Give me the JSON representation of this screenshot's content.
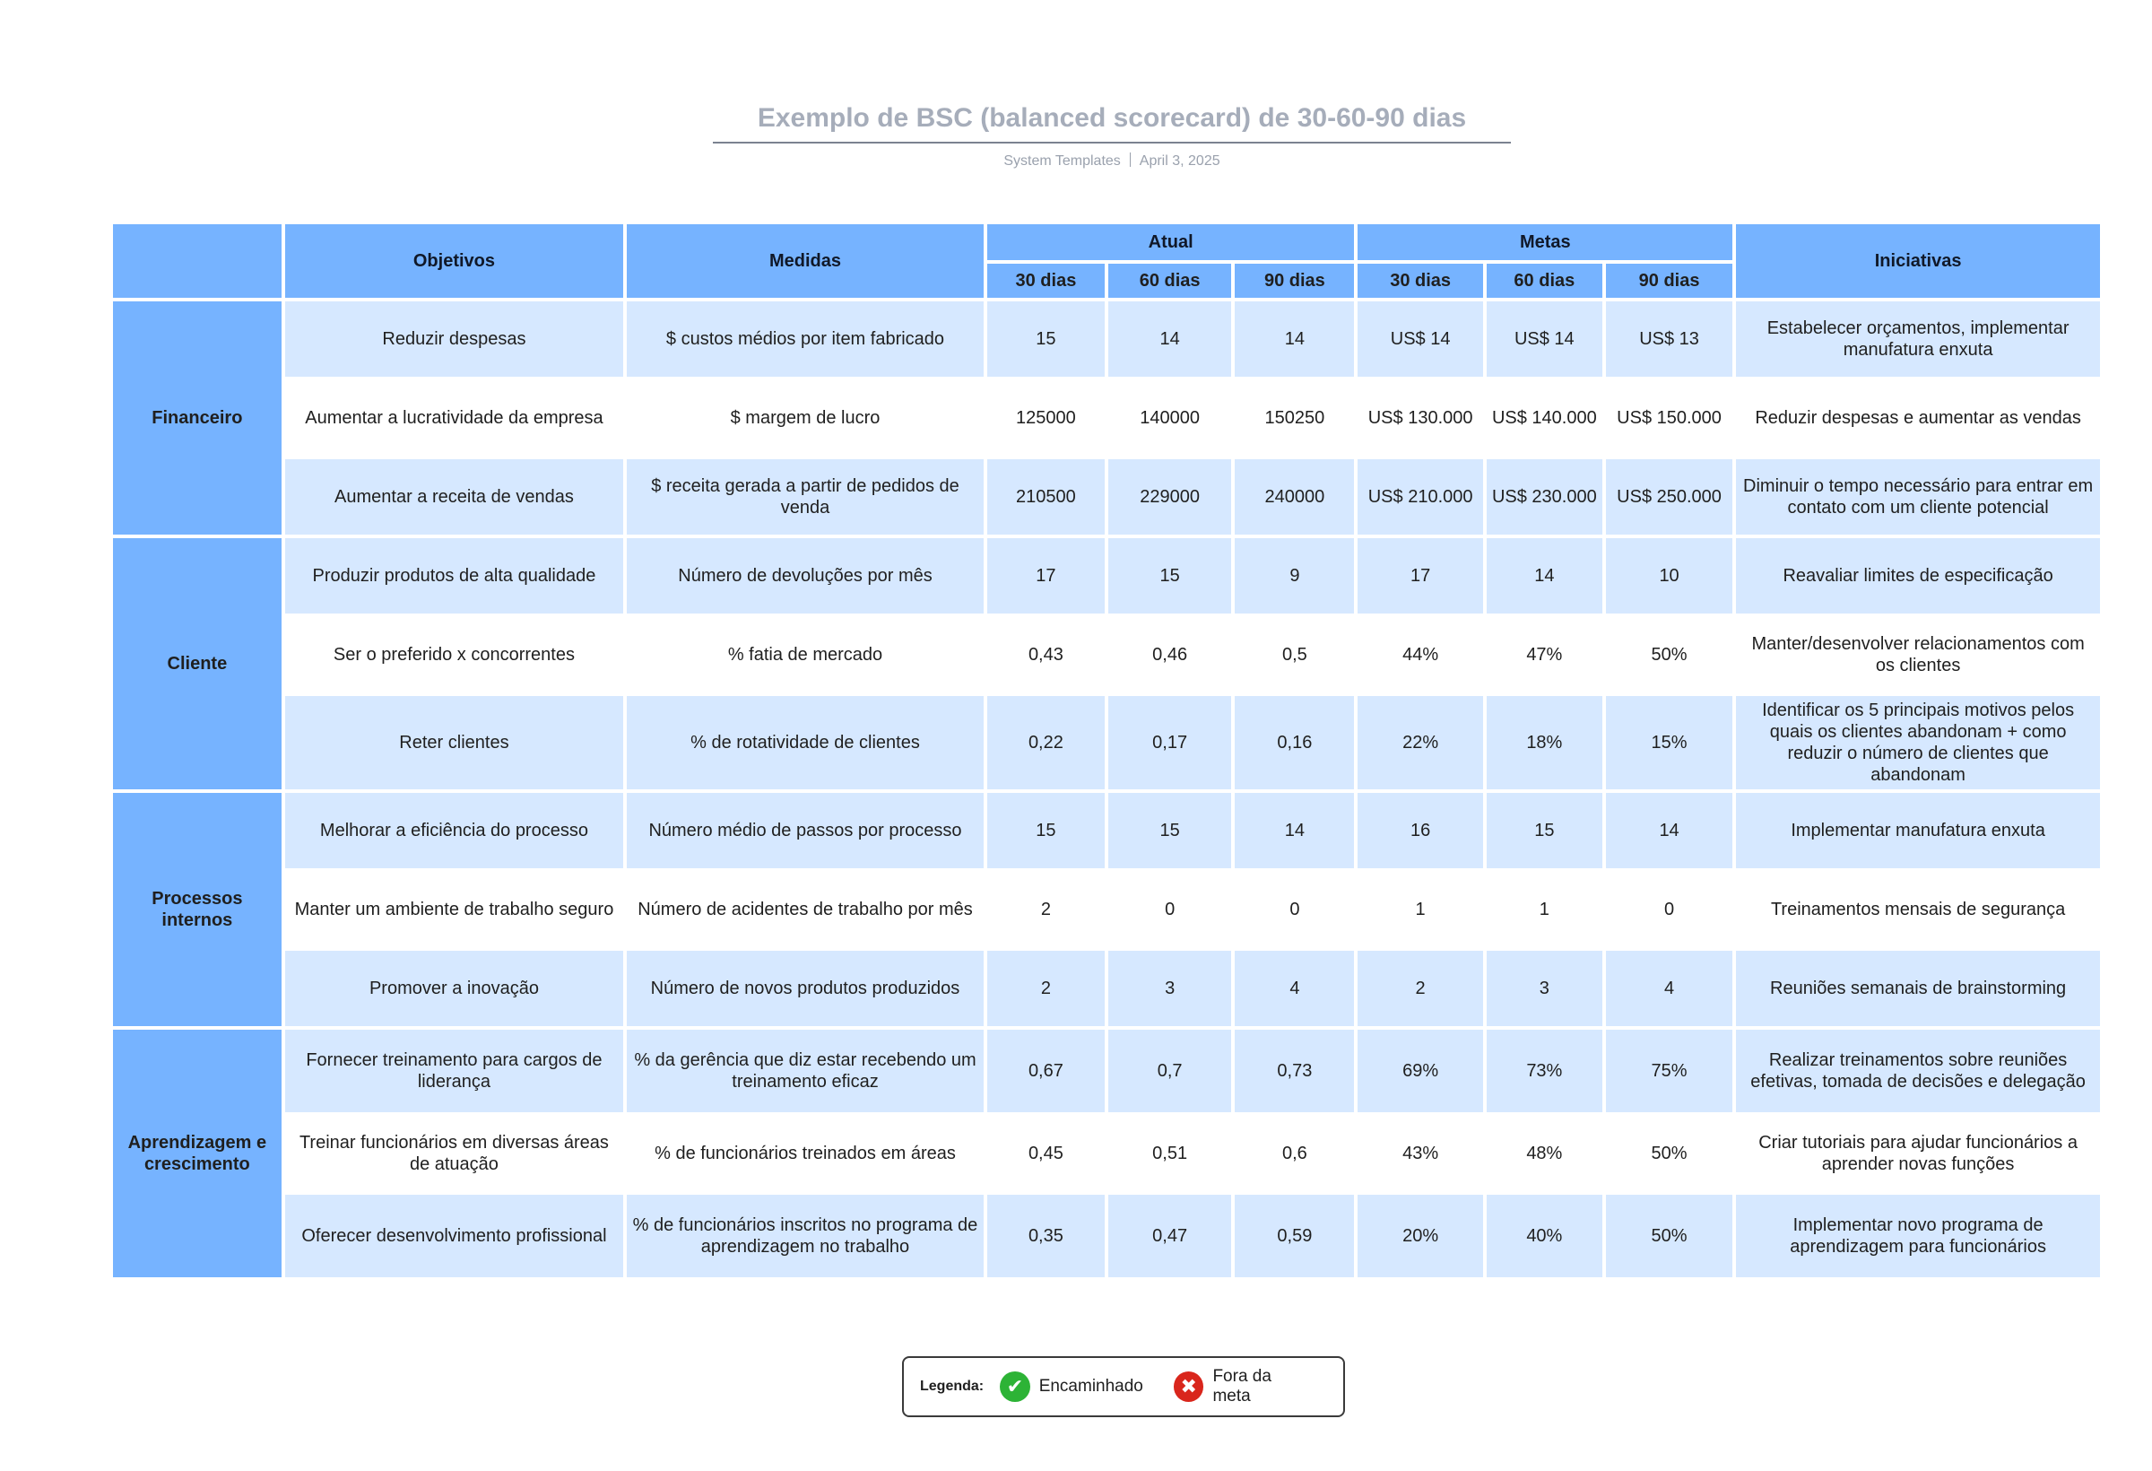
{
  "header": {
    "title": "Exemplo de BSC (balanced scorecard) de 30-60-90 dias",
    "source": "System Templates",
    "date": "April 3, 2025"
  },
  "columns": {
    "objetivos": "Objetivos",
    "medidas": "Medidas",
    "atual": "Atual",
    "metas": "Metas",
    "iniciativas": "Iniciativas",
    "d30": "30 dias",
    "d60": "60 dias",
    "d90": "90 dias"
  },
  "perspectives": [
    {
      "name": "Financeiro",
      "rows": [
        {
          "objetivo": "Reduzir despesas",
          "medida": "$ custos médios por item fabricado",
          "a30": "15",
          "a60": "14",
          "a90": "14",
          "m30": "US$ 14",
          "m60": "US$ 14",
          "m90": "US$ 13",
          "iniciativa": "Estabelecer orçamentos, implementar manufatura enxuta"
        },
        {
          "objetivo": "Aumentar a lucratividade da empresa",
          "medida": "$ margem de lucro",
          "a30": "125000",
          "a60": "140000",
          "a90": "150250",
          "m30": "US$ 130.000",
          "m60": "US$ 140.000",
          "m90": "US$ 150.000",
          "iniciativa": "Reduzir despesas e aumentar as vendas"
        },
        {
          "objetivo": "Aumentar a receita de vendas",
          "medida": "$ receita gerada a partir de pedidos de venda",
          "a30": "210500",
          "a60": "229000",
          "a90": "240000",
          "m30": "US$ 210.000",
          "m60": "US$ 230.000",
          "m90": "US$ 250.000",
          "iniciativa": "Diminuir o tempo necessário para entrar em contato com um cliente potencial"
        }
      ]
    },
    {
      "name": "Cliente",
      "rows": [
        {
          "objetivo": "Produzir produtos de alta qualidade",
          "medida": "Número de devoluções por mês",
          "a30": "17",
          "a60": "15",
          "a90": "9",
          "m30": "17",
          "m60": "14",
          "m90": "10",
          "iniciativa": "Reavaliar limites de especificação"
        },
        {
          "objetivo": "Ser o preferido x concorrentes",
          "medida": "% fatia de mercado",
          "a30": "0,43",
          "a60": "0,46",
          "a90": "0,5",
          "m30": "44%",
          "m60": "47%",
          "m90": "50%",
          "iniciativa": "Manter/desenvolver relacionamentos com os clientes"
        },
        {
          "objetivo": "Reter clientes",
          "medida": "% de rotatividade de clientes",
          "a30": "0,22",
          "a60": "0,17",
          "a90": "0,16",
          "m30": "22%",
          "m60": "18%",
          "m90": "15%",
          "iniciativa": "Identificar os 5 principais motivos pelos quais os clientes abandonam + como reduzir o número de clientes que abandonam"
        }
      ]
    },
    {
      "name": "Processos internos",
      "rows": [
        {
          "objetivo": "Melhorar a eficiência do processo",
          "medida": "Número médio de passos por processo",
          "a30": "15",
          "a60": "15",
          "a90": "14",
          "m30": "16",
          "m60": "15",
          "m90": "14",
          "iniciativa": "Implementar manufatura enxuta"
        },
        {
          "objetivo": "Manter um ambiente de trabalho seguro",
          "medida": "Número de acidentes de trabalho por mês",
          "a30": "2",
          "a60": "0",
          "a90": "0",
          "m30": "1",
          "m60": "1",
          "m90": "0",
          "iniciativa": "Treinamentos mensais de segurança"
        },
        {
          "objetivo": "Promover a inovação",
          "medida": "Número de novos produtos produzidos",
          "a30": "2",
          "a60": "3",
          "a90": "4",
          "m30": "2",
          "m60": "3",
          "m90": "4",
          "iniciativa": "Reuniões semanais de brainstorming"
        }
      ]
    },
    {
      "name": "Aprendizagem e crescimento",
      "rows": [
        {
          "objetivo": "Fornecer treinamento para cargos de liderança",
          "medida": "% da gerência que diz estar recebendo um treinamento eficaz",
          "a30": "0,67",
          "a60": "0,7",
          "a90": "0,73",
          "m30": "69%",
          "m60": "73%",
          "m90": "75%",
          "iniciativa": "Realizar treinamentos sobre reuniões efetivas, tomada de decisões e delegação"
        },
        {
          "objetivo": "Treinar funcionários em diversas áreas de atuação",
          "medida": "% de funcionários treinados em áreas",
          "a30": "0,45",
          "a60": "0,51",
          "a90": "0,6",
          "m30": "43%",
          "m60": "48%",
          "m90": "50%",
          "iniciativa": "Criar tutoriais para ajudar funcionários a aprender novas funções"
        },
        {
          "objetivo": "Oferecer desenvolvimento profissional",
          "medida": "% de funcionários inscritos no programa de aprendizagem no trabalho",
          "a30": "0,35",
          "a60": "0,47",
          "a90": "0,59",
          "m30": "20%",
          "m60": "40%",
          "m90": "50%",
          "iniciativa": "Implementar novo programa de aprendizagem para funcionários"
        }
      ]
    }
  ],
  "legend": {
    "label": "Legenda:",
    "items": [
      {
        "icon": "check-circle-icon",
        "glyph": "✔",
        "text": "Encaminhado",
        "color": "#2db336"
      },
      {
        "icon": "x-circle-icon",
        "glyph": "✖",
        "text": "Fora da meta",
        "color": "#d9261c"
      }
    ]
  },
  "colors": {
    "header_blue": "#76b3ff",
    "row_shade": "#d6e8ff"
  }
}
